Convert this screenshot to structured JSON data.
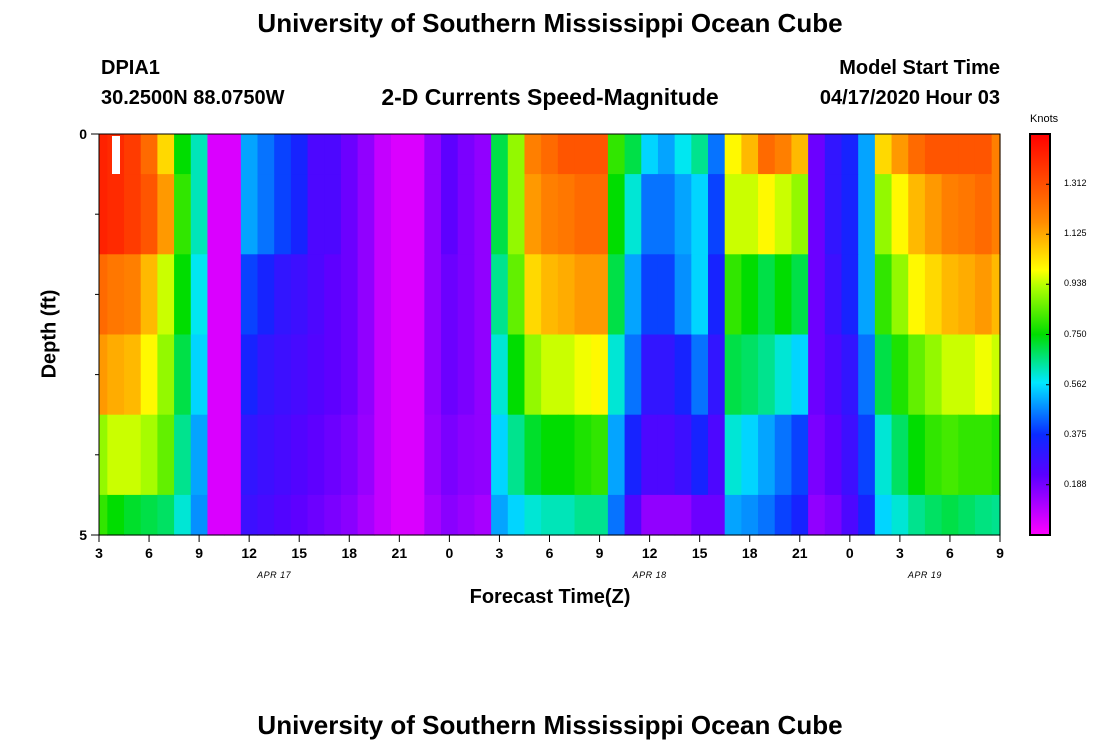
{
  "page": {
    "title_top": "University of Southern Mississippi Ocean Cube",
    "title_bottom": "University of Southern Mississippi Ocean Cube",
    "station_id": "DPIA1",
    "station_coords": "30.2500N 88.0750W",
    "model_start_label": "Model Start Time",
    "model_start_value": "04/17/2020 Hour 03",
    "colors": {
      "background": "#ffffff",
      "text": "#000000"
    }
  },
  "chart_data": {
    "type": "heatmap",
    "title": "2-D Currents Speed-Magnitude",
    "xlabel": "Forecast Time(Z)",
    "ylabel": "Depth (ft)",
    "colorbar_label": "Knots",
    "colorbar_range": [
      0,
      1.5
    ],
    "colorbar_ticks": [
      "0.188",
      "0.375",
      "0.562",
      "0.750",
      "0.938",
      "1.125",
      "1.312"
    ],
    "x_range_hours": [
      0,
      54
    ],
    "x_ticks": [
      {
        "hour": 0,
        "label": "3"
      },
      {
        "hour": 3,
        "label": "6"
      },
      {
        "hour": 6,
        "label": "9"
      },
      {
        "hour": 9,
        "label": "12"
      },
      {
        "hour": 12,
        "label": "15"
      },
      {
        "hour": 15,
        "label": "18"
      },
      {
        "hour": 18,
        "label": "21"
      },
      {
        "hour": 21,
        "label": "0"
      },
      {
        "hour": 24,
        "label": "3"
      },
      {
        "hour": 27,
        "label": "6"
      },
      {
        "hour": 30,
        "label": "9"
      },
      {
        "hour": 33,
        "label": "12"
      },
      {
        "hour": 36,
        "label": "15"
      },
      {
        "hour": 39,
        "label": "18"
      },
      {
        "hour": 42,
        "label": "21"
      },
      {
        "hour": 45,
        "label": "0"
      },
      {
        "hour": 48,
        "label": "3"
      },
      {
        "hour": 51,
        "label": "6"
      },
      {
        "hour": 54,
        "label": "9"
      }
    ],
    "date_labels": [
      {
        "hour": 10.5,
        "label": "APR 17"
      },
      {
        "hour": 33,
        "label": "APR 18"
      },
      {
        "hour": 49.5,
        "label": "APR 19"
      }
    ],
    "y_range_ft": [
      0,
      5
    ],
    "y_ticks": [
      {
        "depth": 0,
        "label": "0"
      },
      {
        "depth": 5,
        "label": "5"
      }
    ],
    "y_minor_ticks": [
      1,
      2,
      3,
      4
    ],
    "depth_layers": [
      {
        "top": 0,
        "bottom": 0.5
      },
      {
        "top": 0.5,
        "bottom": 1.5
      },
      {
        "top": 1.5,
        "bottom": 2.5
      },
      {
        "top": 2.5,
        "bottom": 3.5
      },
      {
        "top": 3.5,
        "bottom": 4.5
      },
      {
        "top": 4.5,
        "bottom": 5
      }
    ],
    "time_hours": [
      0,
      1,
      2,
      3,
      4,
      5,
      6,
      7,
      8,
      9,
      10,
      11,
      12,
      13,
      14,
      15,
      16,
      17,
      18,
      19,
      20,
      21,
      22,
      23,
      24,
      25,
      26,
      27,
      28,
      29,
      30,
      31,
      32,
      33,
      34,
      35,
      36,
      37,
      38,
      39,
      40,
      41,
      42,
      43,
      44,
      45,
      46,
      47,
      48,
      49,
      50,
      51,
      52,
      53,
      54
    ],
    "speed_knots": [
      [
        1.42,
        1.4,
        1.36,
        1.25,
        1.05,
        0.75,
        0.62,
        0.05,
        0.05,
        0.5,
        0.45,
        0.4,
        0.35,
        0.25,
        0.25,
        0.2,
        0.15,
        0.08,
        0.05,
        0.05,
        0.15,
        0.22,
        0.18,
        0.15,
        0.7,
        0.9,
        1.2,
        1.25,
        1.3,
        1.3,
        1.3,
        0.8,
        0.7,
        0.55,
        0.5,
        0.58,
        0.65,
        0.45,
        1.0,
        1.1,
        1.25,
        1.2,
        1.1,
        0.2,
        0.3,
        0.35,
        0.5,
        1.05,
        1.15,
        1.25,
        1.3,
        1.3,
        1.3,
        1.3,
        1.2
      ],
      [
        1.42,
        1.4,
        1.36,
        1.3,
        1.15,
        0.8,
        0.62,
        0.05,
        0.05,
        0.5,
        0.45,
        0.4,
        0.35,
        0.25,
        0.25,
        0.2,
        0.15,
        0.08,
        0.05,
        0.05,
        0.15,
        0.22,
        0.18,
        0.15,
        0.7,
        0.9,
        1.15,
        1.2,
        1.22,
        1.25,
        1.25,
        0.75,
        0.6,
        0.45,
        0.45,
        0.5,
        0.55,
        0.4,
        0.95,
        0.95,
        1.0,
        0.95,
        0.9,
        0.2,
        0.3,
        0.35,
        0.5,
        0.9,
        1.0,
        1.1,
        1.15,
        1.2,
        1.22,
        1.25,
        1.2
      ],
      [
        1.25,
        1.22,
        1.2,
        1.1,
        0.95,
        0.75,
        0.58,
        0.05,
        0.05,
        0.4,
        0.35,
        0.3,
        0.28,
        0.25,
        0.22,
        0.2,
        0.15,
        0.08,
        0.05,
        0.05,
        0.15,
        0.2,
        0.18,
        0.15,
        0.65,
        0.85,
        1.05,
        1.1,
        1.12,
        1.15,
        1.15,
        0.7,
        0.5,
        0.4,
        0.4,
        0.48,
        0.55,
        0.35,
        0.8,
        0.75,
        0.7,
        0.75,
        0.7,
        0.2,
        0.28,
        0.35,
        0.5,
        0.8,
        0.9,
        1.0,
        1.05,
        1.1,
        1.12,
        1.15,
        1.1
      ],
      [
        1.15,
        1.12,
        1.1,
        1.0,
        0.9,
        0.7,
        0.55,
        0.05,
        0.05,
        0.35,
        0.3,
        0.28,
        0.26,
        0.24,
        0.22,
        0.2,
        0.15,
        0.08,
        0.05,
        0.05,
        0.15,
        0.2,
        0.18,
        0.15,
        0.6,
        0.75,
        0.9,
        0.95,
        0.95,
        0.98,
        1.0,
        0.6,
        0.45,
        0.3,
        0.3,
        0.35,
        0.45,
        0.3,
        0.7,
        0.68,
        0.65,
        0.6,
        0.55,
        0.2,
        0.25,
        0.3,
        0.45,
        0.7,
        0.78,
        0.85,
        0.9,
        0.95,
        0.95,
        0.98,
        0.95
      ],
      [
        0.9,
        0.95,
        0.95,
        0.92,
        0.85,
        0.65,
        0.5,
        0.05,
        0.05,
        0.3,
        0.28,
        0.26,
        0.24,
        0.22,
        0.2,
        0.18,
        0.14,
        0.08,
        0.05,
        0.05,
        0.14,
        0.18,
        0.16,
        0.15,
        0.55,
        0.65,
        0.72,
        0.75,
        0.75,
        0.78,
        0.8,
        0.5,
        0.35,
        0.25,
        0.25,
        0.28,
        0.35,
        0.25,
        0.6,
        0.55,
        0.5,
        0.45,
        0.4,
        0.18,
        0.22,
        0.28,
        0.4,
        0.6,
        0.68,
        0.75,
        0.8,
        0.82,
        0.8,
        0.8,
        0.78
      ],
      [
        0.8,
        0.75,
        0.72,
        0.7,
        0.68,
        0.6,
        0.48,
        0.05,
        0.05,
        0.28,
        0.26,
        0.24,
        0.22,
        0.2,
        0.18,
        0.16,
        0.12,
        0.08,
        0.05,
        0.05,
        0.12,
        0.16,
        0.14,
        0.12,
        0.5,
        0.55,
        0.6,
        0.62,
        0.62,
        0.65,
        0.65,
        0.45,
        0.25,
        0.15,
        0.15,
        0.15,
        0.2,
        0.2,
        0.5,
        0.48,
        0.45,
        0.4,
        0.35,
        0.15,
        0.18,
        0.25,
        0.35,
        0.55,
        0.6,
        0.65,
        0.68,
        0.7,
        0.68,
        0.66,
        0.65
      ]
    ]
  }
}
